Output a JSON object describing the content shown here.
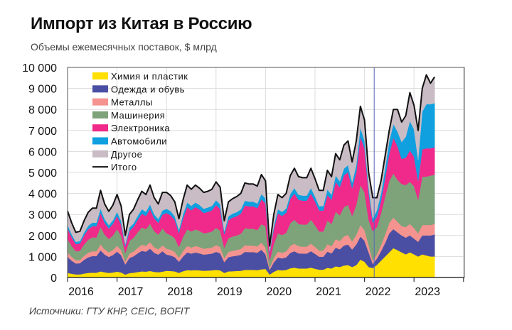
{
  "header": {
    "title": "Импорт из Китая в Россию",
    "subtitle": "Объемы ежемесячных поставок, $ млрд"
  },
  "footer": {
    "source": "Источники: ГТУ КНР, CEIC, BOFIT"
  },
  "chart_data": {
    "type": "area",
    "stacked": true,
    "title": "Импорт из Китая в Россию",
    "subtitle": "Объемы ежемесячных поставок, $ млрд",
    "xlabel": "",
    "ylabel": "",
    "ylim": [
      0,
      10000
    ],
    "yticks": [
      "0",
      "1 000",
      "2 000",
      "3 000",
      "4 000",
      "5 000",
      "6 000",
      "7 000",
      "8 000",
      "9 000",
      "10 000"
    ],
    "xticks": [
      "2016",
      "2017",
      "2018",
      "2019",
      "2020",
      "2021",
      "2022",
      "2023"
    ],
    "grid": true,
    "legend_position": "top-left",
    "vertical_reference_line": {
      "x": "2022-03",
      "color": "#5566bb"
    },
    "x": [
      "2016-01",
      "2016-02",
      "2016-03",
      "2016-04",
      "2016-05",
      "2016-06",
      "2016-07",
      "2016-08",
      "2016-09",
      "2016-10",
      "2016-11",
      "2016-12",
      "2017-01",
      "2017-02",
      "2017-03",
      "2017-04",
      "2017-05",
      "2017-06",
      "2017-07",
      "2017-08",
      "2017-09",
      "2017-10",
      "2017-11",
      "2017-12",
      "2018-01",
      "2018-02",
      "2018-03",
      "2018-04",
      "2018-05",
      "2018-06",
      "2018-07",
      "2018-08",
      "2018-09",
      "2018-10",
      "2018-11",
      "2018-12",
      "2019-01",
      "2019-02",
      "2019-03",
      "2019-04",
      "2019-05",
      "2019-06",
      "2019-07",
      "2019-08",
      "2019-09",
      "2019-10",
      "2019-11",
      "2019-12",
      "2020-01",
      "2020-02",
      "2020-03",
      "2020-04",
      "2020-05",
      "2020-06",
      "2020-07",
      "2020-08",
      "2020-09",
      "2020-10",
      "2020-11",
      "2020-12",
      "2021-01",
      "2021-02",
      "2021-03",
      "2021-04",
      "2021-05",
      "2021-06",
      "2021-07",
      "2021-08",
      "2021-09",
      "2021-10",
      "2021-11",
      "2021-12",
      "2022-01",
      "2022-02",
      "2022-03",
      "2022-04",
      "2022-05",
      "2022-06",
      "2022-07",
      "2022-08",
      "2022-09",
      "2022-10",
      "2022-11",
      "2022-12",
      "2023-01",
      "2023-02",
      "2023-03",
      "2023-04",
      "2023-05",
      "2023-06"
    ],
    "series": [
      {
        "name": "Химия и пластик",
        "color": "#ffe000",
        "values": [
          220,
          180,
          150,
          150,
          190,
          220,
          230,
          230,
          290,
          250,
          220,
          240,
          280,
          240,
          140,
          210,
          230,
          260,
          290,
          280,
          310,
          270,
          250,
          280,
          320,
          310,
          290,
          220,
          300,
          350,
          340,
          350,
          340,
          320,
          330,
          340,
          360,
          340,
          220,
          290,
          300,
          310,
          320,
          360,
          360,
          360,
          350,
          390,
          410,
          140,
          270,
          360,
          340,
          360,
          440,
          470,
          430,
          430,
          430,
          470,
          420,
          370,
          370,
          460,
          430,
          530,
          500,
          570,
          590,
          500,
          590,
          850,
          750,
          500,
          450,
          600,
          800,
          1000,
          1200,
          1400,
          1300,
          1200,
          1100,
          1200,
          1100,
          1000,
          1100,
          1050,
          1000,
          1000
        ]
      },
      {
        "name": "Одежда и обувь",
        "color": "#4a4fa3",
        "values": [
          760,
          620,
          520,
          530,
          650,
          740,
          790,
          790,
          1000,
          840,
          760,
          830,
          950,
          820,
          480,
          720,
          780,
          890,
          980,
          950,
          1060,
          910,
          840,
          970,
          770,
          740,
          680,
          530,
          700,
          840,
          800,
          840,
          810,
          770,
          780,
          800,
          860,
          820,
          510,
          680,
          710,
          730,
          760,
          860,
          850,
          850,
          830,
          930,
          690,
          220,
          450,
          590,
          570,
          600,
          730,
          780,
          720,
          710,
          710,
          780,
          710,
          620,
          620,
          770,
          720,
          890,
          840,
          950,
          980,
          830,
          980,
          1100,
          1000,
          700,
          200,
          300,
          450,
          650,
          900,
          900,
          850,
          800,
          800,
          800,
          750,
          700,
          900,
          950,
          1000,
          1050
        ]
      },
      {
        "name": "Металлы",
        "color": "#f4938f",
        "values": [
          220,
          180,
          150,
          150,
          190,
          220,
          230,
          230,
          290,
          250,
          220,
          240,
          280,
          240,
          140,
          210,
          230,
          260,
          290,
          280,
          310,
          270,
          250,
          280,
          280,
          270,
          250,
          200,
          260,
          310,
          290,
          310,
          300,
          280,
          290,
          290,
          320,
          300,
          190,
          250,
          260,
          270,
          280,
          320,
          310,
          310,
          300,
          340,
          320,
          110,
          210,
          280,
          270,
          280,
          340,
          360,
          340,
          330,
          330,
          360,
          330,
          290,
          290,
          360,
          340,
          410,
          390,
          440,
          460,
          390,
          460,
          550,
          500,
          350,
          150,
          200,
          300,
          400,
          500,
          550,
          500,
          450,
          500,
          550,
          500,
          400,
          500,
          500,
          500,
          500
        ]
      },
      {
        "name": "Машинерия",
        "color": "#7ea37a",
        "values": [
          630,
          520,
          430,
          440,
          540,
          620,
          660,
          660,
          830,
          700,
          630,
          690,
          790,
          680,
          400,
          600,
          650,
          740,
          820,
          790,
          880,
          760,
          700,
          810,
          730,
          700,
          650,
          500,
          670,
          790,
          760,
          790,
          770,
          730,
          740,
          760,
          820,
          770,
          490,
          650,
          680,
          690,
          720,
          810,
          800,
          800,
          780,
          880,
          1010,
          330,
          660,
          870,
          840,
          880,
          1070,
          1140,
          1060,
          1050,
          1050,
          1140,
          1030,
          910,
          910,
          1120,
          1060,
          1300,
          1230,
          1390,
          1430,
          1210,
          1430,
          1900,
          1800,
          1200,
          1400,
          1300,
          1500,
          1800,
          2000,
          2100,
          2000,
          2000,
          2000,
          2000,
          2000,
          1600,
          2300,
          2300,
          2350,
          2350
        ]
      },
      {
        "name": "Электроника",
        "color": "#f02a8a",
        "values": [
          510,
          420,
          340,
          350,
          430,
          500,
          530,
          530,
          660,
          560,
          500,
          550,
          630,
          540,
          320,
          480,
          520,
          590,
          660,
          630,
          700,
          610,
          560,
          650,
          970,
          940,
          860,
          670,
          890,
          1060,
          1010,
          1060,
          1020,
          970,
          980,
          1010,
          1090,
          1030,
          650,
          860,
          900,
          920,
          960,
          1080,
          1070,
          1070,
          1040,
          1180,
          1100,
          360,
          720,
          950,
          910,
          960,
          1160,
          1250,
          1150,
          1140,
          1140,
          1250,
          1130,
          1000,
          1000,
          1220,
          1150,
          1420,
          1340,
          1510,
          1560,
          1320,
          1560,
          2300,
          2100,
          1300,
          400,
          500,
          600,
          900,
          1300,
          1700,
          1600,
          1200,
          1300,
          1500,
          1400,
          900,
          1300,
          1350,
          1300,
          1300
        ]
      },
      {
        "name": "Автомобили",
        "color": "#10a0e0",
        "values": [
          160,
          130,
          110,
          110,
          140,
          160,
          170,
          170,
          210,
          180,
          160,
          170,
          200,
          170,
          100,
          150,
          160,
          190,
          210,
          200,
          220,
          190,
          180,
          200,
          200,
          200,
          180,
          140,
          190,
          220,
          210,
          220,
          210,
          200,
          210,
          210,
          230,
          220,
          140,
          180,
          190,
          190,
          200,
          230,
          220,
          220,
          220,
          250,
          230,
          80,
          150,
          200,
          190,
          200,
          240,
          260,
          240,
          240,
          240,
          260,
          240,
          210,
          210,
          260,
          240,
          300,
          280,
          320,
          330,
          280,
          330,
          450,
          350,
          250,
          200,
          300,
          350,
          450,
          600,
          650,
          700,
          800,
          1000,
          1400,
          1300,
          1000,
          1800,
          2100,
          2100,
          2100
        ]
      },
      {
        "name": "Другое",
        "color": "#c9bcc4",
        "values": [
          660,
          550,
          450,
          470,
          560,
          640,
          690,
          690,
          870,
          720,
          660,
          730,
          820,
          710,
          420,
          630,
          680,
          770,
          850,
          820,
          920,
          790,
          720,
          860,
          780,
          740,
          690,
          540,
          690,
          830,
          790,
          830,
          800,
          780,
          770,
          790,
          870,
          820,
          500,
          690,
          710,
          740,
          760,
          840,
          840,
          840,
          830,
          930,
          840,
          260,
          540,
          700,
          680,
          720,
          870,
          940,
          860,
          850,
          850,
          940,
          840,
          750,
          750,
          910,
          860,
          1050,
          1020,
          1120,
          1150,
          970,
          1150,
          1000,
          1000,
          700,
          1000,
          600,
          600,
          600,
          500,
          700,
          1050,
          950,
          1000,
          1350,
          1150,
          1400,
          1100,
          1400,
          1000,
          1250
        ]
      }
    ],
    "total": {
      "name": "Итого",
      "color": "#111111",
      "values": [
        3160,
        2600,
        2150,
        2200,
        2700,
        3100,
        3300,
        3300,
        4150,
        3500,
        3150,
        3450,
        3950,
        3400,
        2000,
        3000,
        3250,
        3700,
        4100,
        3950,
        4400,
        3800,
        3500,
        4050,
        4050,
        3900,
        3600,
        2800,
        3700,
        4400,
        4200,
        4400,
        4250,
        4050,
        4100,
        4200,
        4550,
        4300,
        2700,
        3600,
        3750,
        3850,
        4000,
        4500,
        4450,
        4450,
        4350,
        4900,
        4600,
        1500,
        3000,
        3950,
        3800,
        4000,
        4850,
        5200,
        4800,
        4750,
        4750,
        5200,
        4700,
        4150,
        4150,
        5100,
        4800,
        5900,
        5600,
        6300,
        6500,
        5500,
        6500,
        8150,
        7500,
        5000,
        3800,
        3800,
        4600,
        5800,
        7000,
        8000,
        8000,
        7400,
        7700,
        8800,
        8200,
        7000,
        9000,
        9650,
        9250,
        9550
      ]
    }
  }
}
